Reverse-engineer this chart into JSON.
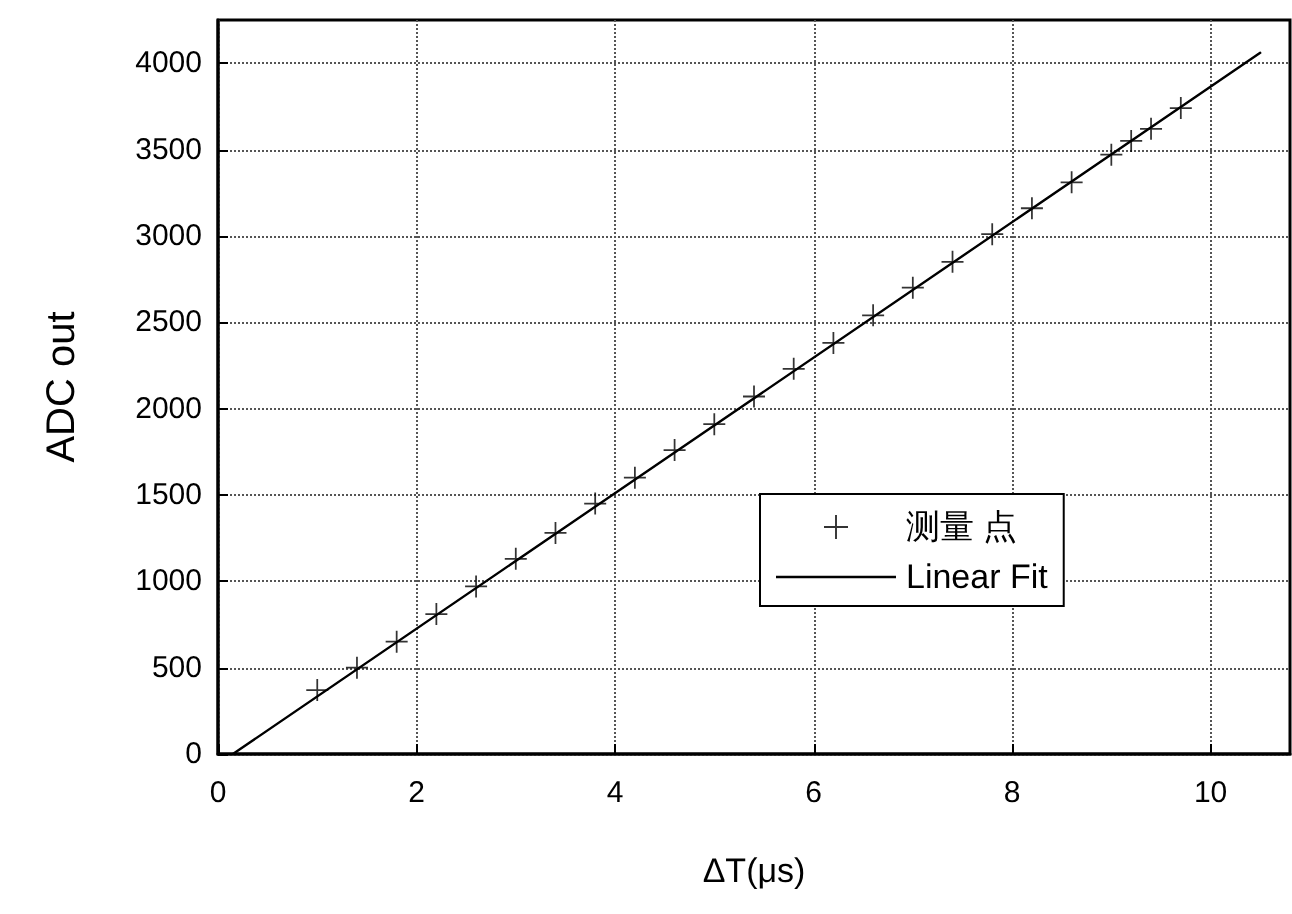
{
  "chart_data": {
    "type": "scatter",
    "xlabel": "ΔT(μs)",
    "ylabel": "ADC out",
    "xlim": [
      0,
      10.8
    ],
    "ylim": [
      0,
      4250
    ],
    "xticks": [
      0,
      2,
      4,
      6,
      8,
      10
    ],
    "yticks": [
      0,
      500,
      1000,
      1500,
      2000,
      2500,
      3000,
      3500,
      4000
    ],
    "grid": true,
    "legend": "right",
    "series": [
      {
        "name": "测量 点",
        "marker": "cross",
        "color": "#000000",
        "x": [
          1.0,
          1.4,
          1.8,
          2.2,
          2.6,
          3.0,
          3.4,
          3.8,
          4.2,
          4.6,
          5.0,
          5.4,
          5.8,
          6.2,
          6.6,
          7.0,
          7.4,
          7.8,
          8.2,
          8.6,
          9.0,
          9.2,
          9.4,
          9.7
        ],
        "values": [
          370,
          500,
          650,
          810,
          970,
          1130,
          1280,
          1450,
          1600,
          1760,
          1910,
          2070,
          2230,
          2380,
          2540,
          2700,
          2850,
          3010,
          3160,
          3310,
          3470,
          3550,
          3620,
          3740
        ]
      },
      {
        "name": "Linear Fit",
        "type": "line",
        "color": "#000000",
        "line_style": "solid",
        "marker": "none",
        "x": [
          0.15,
          10.5
        ],
        "values": [
          0,
          4060
        ]
      }
    ]
  }
}
